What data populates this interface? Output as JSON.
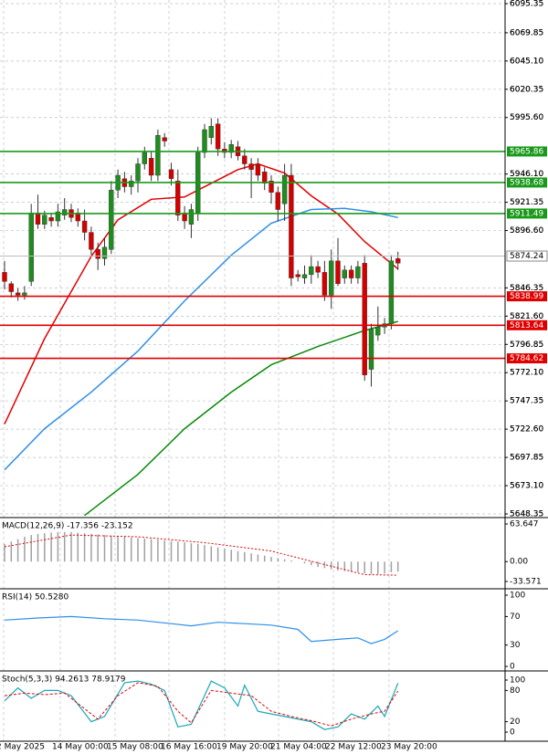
{
  "chart_data": {
    "type": "candlestick",
    "ylim": [
      5645.95,
      6098.55
    ],
    "yticks": [
      6095.35,
      6069.85,
      {
        "value": 6045.1,
        "label": "6045.10"
      },
      6020.35,
      {
        "value": 5995.6,
        "label": "5995.60"
      },
      {
        "value": 5946.1,
        "label": "5946.10"
      },
      5921.35,
      {
        "value": 5896.6,
        "label": "5896.60"
      },
      5846.35,
      {
        "value": 5821.6,
        "label": "5821.60"
      },
      5796.85,
      {
        "value": 5772.1,
        "label": "5772.10"
      },
      5747.35,
      {
        "value": 5722.6,
        "label": "5722.60"
      },
      5697.85,
      {
        "value": 5673.1,
        "label": "5673.10"
      },
      5648.35
    ],
    "candles": [
      {
        "open": 5860,
        "high": 5870,
        "low": 5845,
        "close": 5852
      },
      {
        "open": 5850,
        "high": 5852,
        "low": 5838,
        "close": 5843
      },
      {
        "open": 5842,
        "high": 5846,
        "low": 5835,
        "close": 5840
      },
      {
        "open": 5840,
        "high": 5848,
        "low": 5836,
        "close": 5842
      },
      {
        "open": 5852,
        "high": 5920,
        "low": 5848,
        "close": 5912
      },
      {
        "open": 5912,
        "high": 5928,
        "low": 5898,
        "close": 5902
      },
      {
        "open": 5902,
        "high": 5914,
        "low": 5898,
        "close": 5910
      },
      {
        "open": 5908,
        "high": 5912,
        "low": 5900,
        "close": 5905
      },
      {
        "open": 5905,
        "high": 5920,
        "low": 5900,
        "close": 5913
      },
      {
        "open": 5910,
        "high": 5925,
        "low": 5906,
        "close": 5915
      },
      {
        "open": 5915,
        "high": 5920,
        "low": 5904,
        "close": 5908
      },
      {
        "open": 5912,
        "high": 5916,
        "low": 5900,
        "close": 5905
      },
      {
        "open": 5905,
        "high": 5915,
        "low": 5888,
        "close": 5895
      },
      {
        "open": 5895,
        "high": 5900,
        "low": 5875,
        "close": 5880
      },
      {
        "open": 5880,
        "high": 5886,
        "low": 5862,
        "close": 5872
      },
      {
        "open": 5872,
        "high": 5890,
        "low": 5866,
        "close": 5882
      },
      {
        "open": 5880,
        "high": 5940,
        "low": 5876,
        "close": 5932
      },
      {
        "open": 5932,
        "high": 5950,
        "low": 5925,
        "close": 5945
      },
      {
        "open": 5942,
        "high": 5948,
        "low": 5930,
        "close": 5935
      },
      {
        "open": 5935,
        "high": 5945,
        "low": 5928,
        "close": 5940
      },
      {
        "open": 5940,
        "high": 5960,
        "low": 5930,
        "close": 5955
      },
      {
        "open": 5955,
        "high": 5970,
        "low": 5950,
        "close": 5965
      },
      {
        "open": 5960,
        "high": 5966,
        "low": 5940,
        "close": 5945
      },
      {
        "open": 5945,
        "high": 5985,
        "low": 5940,
        "close": 5980
      },
      {
        "open": 5978,
        "high": 5982,
        "low": 5970,
        "close": 5975
      },
      {
        "open": 5950,
        "high": 5956,
        "low": 5936,
        "close": 5942
      },
      {
        "open": 5940,
        "high": 5950,
        "low": 5905,
        "close": 5910
      },
      {
        "open": 5912,
        "high": 5918,
        "low": 5898,
        "close": 5905
      },
      {
        "open": 5902,
        "high": 5920,
        "low": 5890,
        "close": 5915
      },
      {
        "open": 5912,
        "high": 5970,
        "low": 5905,
        "close": 5965
      },
      {
        "open": 5965,
        "high": 5990,
        "low": 5960,
        "close": 5985
      },
      {
        "open": 5978,
        "high": 5995,
        "low": 5972,
        "close": 5988
      },
      {
        "open": 5990,
        "high": 5995,
        "low": 5962,
        "close": 5968
      },
      {
        "open": 5968,
        "high": 5974,
        "low": 5960,
        "close": 5965
      },
      {
        "open": 5965,
        "high": 5976,
        "low": 5960,
        "close": 5972
      },
      {
        "open": 5970,
        "high": 5975,
        "low": 5958,
        "close": 5962
      },
      {
        "open": 5962,
        "high": 5968,
        "low": 5950,
        "close": 5955
      },
      {
        "open": 5955,
        "high": 5960,
        "low": 5925,
        "close": 5950
      },
      {
        "open": 5955,
        "high": 5960,
        "low": 5940,
        "close": 5945
      },
      {
        "open": 5948,
        "high": 5952,
        "low": 5932,
        "close": 5938
      },
      {
        "open": 5940,
        "high": 5945,
        "low": 5920,
        "close": 5930
      },
      {
        "open": 5930,
        "high": 5935,
        "low": 5905,
        "close": 5915
      },
      {
        "open": 5920,
        "high": 5955,
        "low": 5905,
        "close": 5945
      },
      {
        "open": 5945,
        "high": 5955,
        "low": 5848,
        "close": 5855
      },
      {
        "open": 5858,
        "high": 5862,
        "low": 5852,
        "close": 5856
      },
      {
        "open": 5855,
        "high": 5866,
        "low": 5850,
        "close": 5858
      },
      {
        "open": 5858,
        "high": 5875,
        "low": 5850,
        "close": 5865
      },
      {
        "open": 5865,
        "high": 5870,
        "low": 5855,
        "close": 5860
      },
      {
        "open": 5860,
        "high": 5870,
        "low": 5835,
        "close": 5840
      },
      {
        "open": 5840,
        "high": 5880,
        "low": 5828,
        "close": 5870
      },
      {
        "open": 5870,
        "high": 5890,
        "low": 5848,
        "close": 5850
      },
      {
        "open": 5855,
        "high": 5866,
        "low": 5850,
        "close": 5862
      },
      {
        "open": 5862,
        "high": 5866,
        "low": 5850,
        "close": 5855
      },
      {
        "open": 5855,
        "high": 5870,
        "low": 5850,
        "close": 5865
      },
      {
        "open": 5868,
        "high": 5875,
        "low": 5765,
        "close": 5770
      },
      {
        "open": 5775,
        "high": 5815,
        "low": 5760,
        "close": 5810
      },
      {
        "open": 5805,
        "high": 5830,
        "low": 5800,
        "close": 5812
      },
      {
        "open": 5812,
        "high": 5820,
        "low": 5806,
        "close": 5815
      },
      {
        "open": 5815,
        "high": 5875,
        "low": 5810,
        "close": 5870
      },
      {
        "open": 5872,
        "high": 5878,
        "low": 5862,
        "close": 5868
      }
    ],
    "moving_averages": [
      {
        "color": "#e00000",
        "x": [
          0,
          6,
          13,
          17,
          22,
          27,
          31,
          35,
          38,
          42,
          46,
          50,
          54,
          59
        ],
        "values": [
          5727,
          5802,
          5874,
          5906,
          5924,
          5926,
          5938,
          5950,
          5955,
          5947,
          5927,
          5911,
          5887,
          5863
        ]
      },
      {
        "color": "#2e8fe8",
        "x": [
          0,
          6,
          13,
          20,
          27,
          34,
          40,
          46,
          51,
          55,
          59
        ],
        "values": [
          5687,
          5723,
          5755,
          5791,
          5835,
          5875,
          5903,
          5915,
          5916,
          5913,
          5908
        ]
      },
      {
        "color": "#0a8a0a",
        "x": [
          12,
          20,
          27,
          34,
          40,
          47,
          54,
          59
        ],
        "values": [
          5647,
          5683,
          5723,
          5755,
          5779,
          5795,
          5809,
          5817
        ]
      }
    ],
    "levels": [
      {
        "value": 5965.86,
        "color": "#1a9a1a"
      },
      {
        "value": 5938.68,
        "color": "#1a9a1a"
      },
      {
        "value": 5911.49,
        "color": "#1a9a1a"
      },
      {
        "value": 5874.24,
        "color": "#ffffff"
      },
      {
        "value": 5838.99,
        "color": "#e00000"
      },
      {
        "value": 5813.64,
        "color": "#e00000"
      },
      {
        "value": 5784.62,
        "color": "#e00000"
      }
    ],
    "x_labels": [
      "2 May 2025",
      "14 May 00:00",
      "15 May 08:00",
      "16 May 16:00",
      "19 May 20:00",
      "21 May 04:00",
      "22 May 12:00",
      "23 May 20:00"
    ],
    "macd": {
      "label": "MACD(12,26,9) -17.356 -23.152",
      "ylim": [
        -44.4,
        72.9
      ],
      "yticks": [
        63.647,
        {
          "value": 0,
          "label": "0.00"
        },
        -33.571
      ],
      "histogram": [
        30,
        34,
        38,
        42,
        45,
        47,
        48,
        49,
        50,
        50,
        50,
        49,
        48,
        47,
        46,
        45,
        44,
        43,
        42,
        41,
        40,
        39,
        38,
        37,
        36,
        35,
        34,
        33,
        31,
        30,
        28,
        26,
        24,
        22,
        20,
        18,
        16,
        14,
        12,
        10,
        8,
        6,
        4,
        2,
        0,
        -3,
        -6,
        -9,
        -11,
        -13,
        -15,
        -16,
        -17,
        -18,
        -20,
        -21,
        -21,
        -20,
        -18,
        -17
      ],
      "signal": {
        "color": "#e00000",
        "x": [
          0,
          10,
          20,
          30,
          40,
          48,
          54,
          59
        ],
        "values": [
          25,
          45,
          42,
          32,
          18,
          -5,
          -22,
          -23
        ]
      }
    },
    "rsi": {
      "label": "RSI(14) 50.5280",
      "ylim": [
        -3.8,
        107.7
      ],
      "yticks": [
        100,
        70,
        30,
        0
      ],
      "line": {
        "color": "#2e8fe8",
        "x": [
          0,
          5,
          10,
          15,
          20,
          25,
          28,
          32,
          36,
          40,
          44,
          46,
          50,
          53,
          55,
          57,
          59
        ],
        "values": [
          65,
          68,
          70,
          67,
          65,
          60,
          57,
          62,
          60,
          58,
          52,
          35,
          38,
          40,
          32,
          38,
          50
        ]
      }
    },
    "stoch": {
      "label": "Stoch(5,3,3) 94.2613 78.9179",
      "ylim": [
        -17.5,
        115.8
      ],
      "yticks": [
        100,
        80,
        20,
        0
      ],
      "main": {
        "color": "#1aa7b8",
        "x": [
          0,
          2,
          4,
          6,
          8,
          10,
          13,
          15,
          18,
          20,
          22,
          24,
          26,
          28,
          31,
          33,
          35,
          36,
          38,
          40,
          42,
          44,
          46,
          48,
          50,
          52,
          54,
          56,
          57,
          59
        ],
        "values": [
          60,
          85,
          65,
          80,
          80,
          70,
          20,
          30,
          95,
          98,
          92,
          80,
          10,
          15,
          98,
          85,
          50,
          90,
          40,
          35,
          30,
          25,
          20,
          5,
          10,
          35,
          25,
          50,
          30,
          94
        ]
      },
      "signal": {
        "color": "#e00000",
        "x": [
          0,
          3,
          6,
          9,
          12,
          14,
          17,
          20,
          23,
          26,
          28,
          31,
          34,
          37,
          40,
          43,
          46,
          49,
          52,
          55,
          57,
          59
        ],
        "values": [
          70,
          75,
          72,
          75,
          45,
          25,
          70,
          95,
          88,
          40,
          18,
          80,
          75,
          70,
          40,
          30,
          22,
          12,
          25,
          35,
          40,
          79
        ]
      }
    }
  }
}
